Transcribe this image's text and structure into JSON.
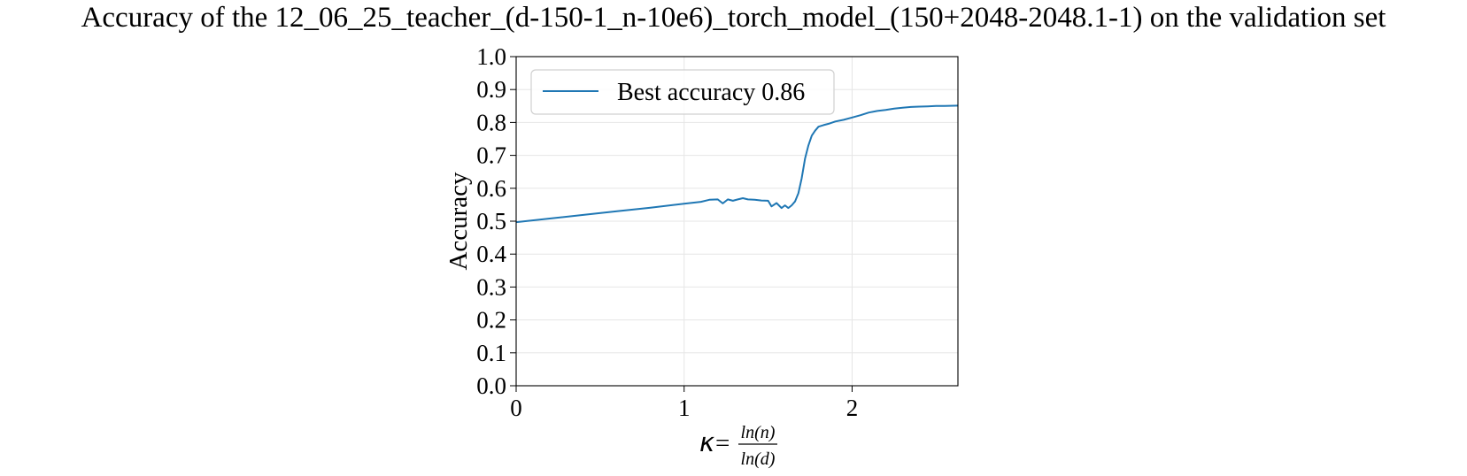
{
  "chart_data": {
    "type": "line",
    "title": "Accuracy of the 12_06_25_teacher_(d-150-1_n-10e6)_torch_model_(150+2048-2048.1-1) on the validation set",
    "ylabel": "Accuracy",
    "xlabel": {
      "prefix": "κ",
      "eq": "=",
      "numerator": "ln(n)",
      "denominator": "ln(d)"
    },
    "xlim": [
      0,
      2.63
    ],
    "ylim": [
      0.0,
      1.0
    ],
    "xticks": [
      "0",
      "1",
      "2"
    ],
    "yticks": [
      "0.0",
      "0.1",
      "0.2",
      "0.3",
      "0.4",
      "0.5",
      "0.6",
      "0.7",
      "0.8",
      "0.9",
      "1.0"
    ],
    "grid": true,
    "legend_position": "upper-left",
    "series": [
      {
        "name": "Best accuracy 0.86",
        "color": "#1f77b4",
        "x": [
          0,
          0.2,
          0.4,
          0.6,
          0.8,
          1.0,
          1.1,
          1.15,
          1.2,
          1.23,
          1.26,
          1.29,
          1.32,
          1.35,
          1.38,
          1.42,
          1.46,
          1.5,
          1.52,
          1.55,
          1.58,
          1.6,
          1.62,
          1.64,
          1.66,
          1.68,
          1.7,
          1.72,
          1.74,
          1.76,
          1.78,
          1.8,
          1.83,
          1.86,
          1.9,
          1.95,
          2.0,
          2.05,
          2.1,
          2.15,
          2.2,
          2.25,
          2.3,
          2.35,
          2.4,
          2.45,
          2.5,
          2.55,
          2.63
        ],
        "y": [
          0.497,
          0.508,
          0.519,
          0.53,
          0.541,
          0.553,
          0.559,
          0.565,
          0.566,
          0.554,
          0.566,
          0.562,
          0.566,
          0.57,
          0.566,
          0.565,
          0.563,
          0.562,
          0.545,
          0.555,
          0.54,
          0.548,
          0.54,
          0.548,
          0.56,
          0.585,
          0.63,
          0.69,
          0.73,
          0.76,
          0.775,
          0.787,
          0.792,
          0.796,
          0.803,
          0.808,
          0.815,
          0.822,
          0.83,
          0.835,
          0.838,
          0.842,
          0.845,
          0.847,
          0.848,
          0.849,
          0.85,
          0.85,
          0.851
        ]
      }
    ]
  }
}
